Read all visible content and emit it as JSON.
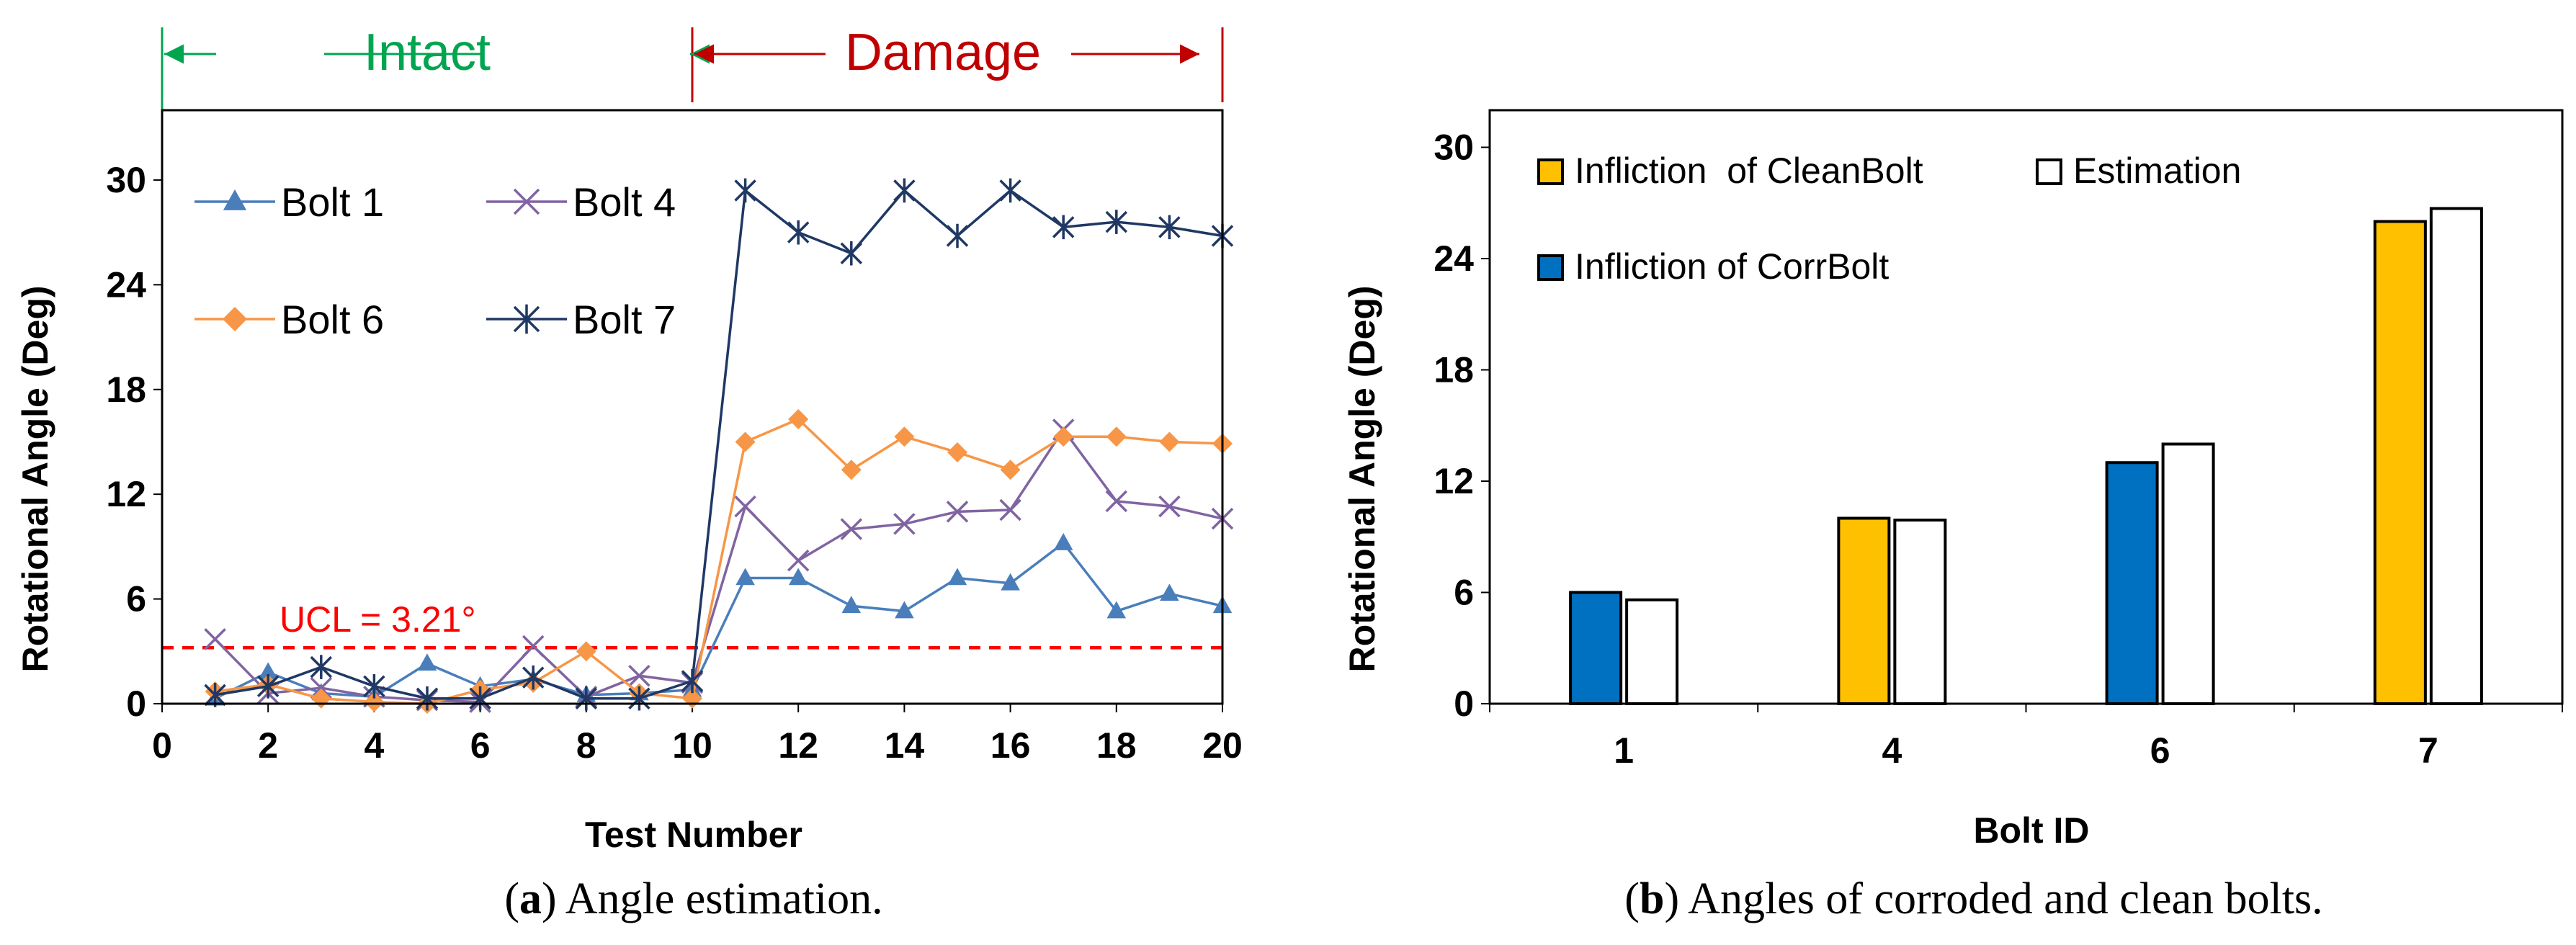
{
  "chart_data": [
    {
      "type": "line",
      "caption": {
        "letter": "a",
        "text": "Angle estimation."
      },
      "xlabel": "Test Number",
      "ylabel": "Rotational Angle (Deg)",
      "xlim": [
        0,
        20
      ],
      "ylim": [
        0,
        34
      ],
      "xticks": [
        0,
        2,
        4,
        6,
        8,
        10,
        12,
        14,
        16,
        18,
        20
      ],
      "yticks": [
        0,
        6,
        12,
        18,
        24,
        30
      ],
      "legend_placement": "top-left",
      "phases": [
        {
          "label": "Intact",
          "from": 0,
          "to": 10,
          "color": "#00a550"
        },
        {
          "label": "Damage",
          "from": 10,
          "to": 20,
          "color": "#c00000"
        }
      ],
      "threshold": {
        "label": "UCL = 3.21°",
        "value": 3.21,
        "color": "#ff0000"
      },
      "series": [
        {
          "name": "Bolt 1",
          "marker": "triangle",
          "color": "#4a7ebb",
          "x": [
            1,
            2,
            3,
            4,
            5,
            6,
            7,
            8,
            9,
            10,
            11,
            12,
            13,
            14,
            15,
            16,
            17,
            18,
            19,
            20
          ],
          "y": [
            0.3,
            1.8,
            0.6,
            0.4,
            2.3,
            1.0,
            1.4,
            0.5,
            0.6,
            0.8,
            7.2,
            7.2,
            5.6,
            5.3,
            7.2,
            6.9,
            9.2,
            5.3,
            6.3,
            5.6
          ]
        },
        {
          "name": "Bolt 4",
          "marker": "x",
          "color": "#8064a2",
          "x": [
            1,
            2,
            3,
            4,
            5,
            6,
            7,
            8,
            9,
            10,
            11,
            12,
            13,
            14,
            15,
            16,
            17,
            18,
            19,
            20
          ],
          "y": [
            3.7,
            0.6,
            0.9,
            0.4,
            0.2,
            0.1,
            3.3,
            0.4,
            1.6,
            1.2,
            11.3,
            8.2,
            10.0,
            10.3,
            11.0,
            11.1,
            15.7,
            11.6,
            11.3,
            10.6
          ]
        },
        {
          "name": "Bolt 6",
          "marker": "diamond",
          "color": "#f79646",
          "x": [
            1,
            2,
            3,
            4,
            5,
            6,
            7,
            8,
            9,
            10,
            11,
            12,
            13,
            14,
            15,
            16,
            17,
            18,
            19,
            20
          ],
          "y": [
            0.7,
            1.1,
            0.3,
            0.1,
            0.0,
            0.8,
            1.2,
            3.0,
            0.6,
            0.3,
            15.0,
            16.3,
            13.4,
            15.3,
            14.4,
            13.4,
            15.3,
            15.3,
            15.0,
            14.9
          ]
        },
        {
          "name": "Bolt 7",
          "marker": "star",
          "color": "#1f3864",
          "x": [
            1,
            2,
            3,
            4,
            5,
            6,
            7,
            8,
            9,
            10,
            11,
            12,
            13,
            14,
            15,
            16,
            17,
            18,
            19,
            20
          ],
          "y": [
            0.5,
            1.0,
            2.1,
            1.0,
            0.3,
            0.3,
            1.5,
            0.3,
            0.3,
            1.3,
            29.4,
            27.0,
            25.8,
            29.4,
            26.8,
            29.4,
            27.3,
            27.6,
            27.3,
            26.8
          ]
        }
      ]
    },
    {
      "type": "bar",
      "caption": {
        "letter": "b",
        "text": "Angles of corroded and clean bolts."
      },
      "xlabel": "Bolt ID",
      "ylabel": "Rotational Angle (Deg)",
      "ylim": [
        0,
        32
      ],
      "yticks": [
        0,
        6,
        12,
        18,
        24,
        30
      ],
      "categories": [
        "1",
        "4",
        "6",
        "7"
      ],
      "legend_placement": "top-left",
      "legend": [
        {
          "name": "Infliction  of CleanBolt",
          "color": "#ffc000"
        },
        {
          "name": "Estimation",
          "color": "#ffffff"
        },
        {
          "name": "Infliction of CorrBolt",
          "color": "#0070c0"
        }
      ],
      "bars": [
        {
          "category": "1",
          "first": {
            "series": "Infliction of CorrBolt",
            "value": 6.0
          },
          "estimation": 5.6
        },
        {
          "category": "4",
          "first": {
            "series": "Infliction  of CleanBolt",
            "value": 10.0
          },
          "estimation": 9.9
        },
        {
          "category": "6",
          "first": {
            "series": "Infliction of CorrBolt",
            "value": 13.0
          },
          "estimation": 14.0
        },
        {
          "category": "7",
          "first": {
            "series": "Infliction  of CleanBolt",
            "value": 26.0
          },
          "estimation": 26.7
        }
      ]
    }
  ]
}
